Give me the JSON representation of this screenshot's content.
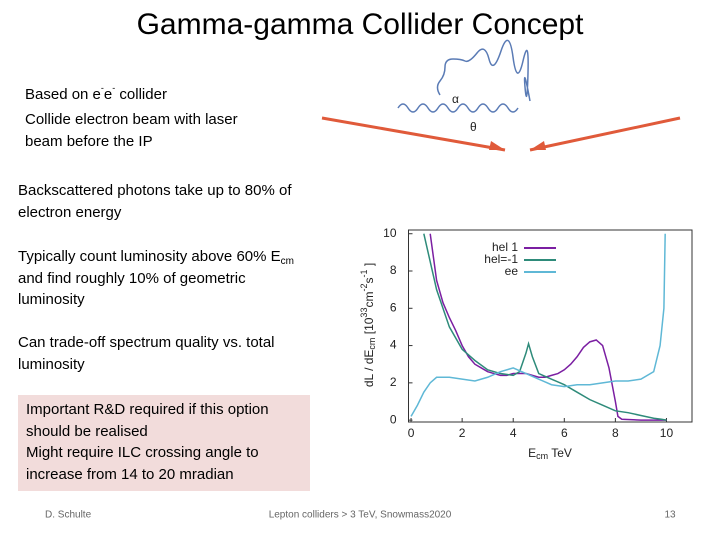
{
  "title": "Gamma-gamma Collider Concept",
  "blocks": [
    {
      "lines": [
        [
          "Based on e",
          "-",
          "e",
          "-",
          " collider"
        ],
        "Collide electron beam with laser",
        "beam before the IP"
      ]
    },
    {
      "lines": [
        "Backscattered photons take up to 80% of",
        "electron energy"
      ]
    },
    {
      "lines": [
        [
          "Typically count luminosity above 60% E",
          "cm"
        ],
        "and find roughly 10% of geometric",
        "luminosity"
      ]
    },
    {
      "lines": [
        "Can trade-off spectrum quality vs. total",
        "luminosity"
      ]
    }
  ],
  "box": {
    "lines": [
      "Important R&D required if this option",
      "should be realised",
      "Might require ILC crossing angle to",
      "increase from 14 to 20 mradian"
    ]
  },
  "diagram": {
    "labels": [
      "α",
      "θ"
    ]
  },
  "footer": {
    "author": "D. Schulte",
    "event": "Lepton colliders > 3 TeV, Snowmass2020",
    "page": "13"
  },
  "chart_data": {
    "type": "line",
    "x_label": [
      "E",
      "cm",
      " TeV"
    ],
    "y_label": [
      "dL / dE",
      "cm",
      " [10",
      "33",
      "cm",
      "-2",
      "s",
      "-1",
      " ]"
    ],
    "xlim": [
      -0.1,
      11
    ],
    "ylim": [
      -0.1,
      10.2
    ],
    "xticks": [
      0,
      2,
      4,
      6,
      8,
      10
    ],
    "yticks": [
      0,
      2,
      4,
      6,
      8,
      10
    ],
    "series": [
      {
        "name": "hel 1",
        "color": "#7b1fa2",
        "x": [
          0.75,
          1,
          1.25,
          1.5,
          1.75,
          2,
          2.25,
          2.5,
          2.75,
          3,
          3.25,
          3.5,
          3.75,
          4,
          4.25,
          4.5,
          4.75,
          5,
          5.25,
          5.5,
          5.75,
          6,
          6.25,
          6.5,
          6.75,
          7,
          7.25,
          7.5,
          7.75,
          8,
          8.1,
          8.25,
          9,
          10
        ],
        "values": [
          10,
          7.5,
          6.3,
          5.5,
          4.8,
          4.0,
          3.4,
          3.0,
          2.8,
          2.6,
          2.5,
          2.4,
          2.4,
          2.5,
          2.5,
          2.5,
          2.4,
          2.3,
          2.3,
          2.4,
          2.5,
          2.7,
          3.0,
          3.4,
          3.9,
          4.2,
          4.3,
          4.0,
          2.8,
          1.0,
          0.2,
          0.05,
          0,
          0
        ]
      },
      {
        "name": "hel=-1",
        "color": "#2e8b7a",
        "x": [
          0.5,
          1,
          1.5,
          2,
          2.5,
          3,
          3.5,
          4,
          4.25,
          4.5,
          4.6,
          4.75,
          5,
          5.5,
          6,
          6.5,
          7,
          7.5,
          8,
          8.5,
          9,
          9.5,
          9.8,
          10
        ],
        "values": [
          10,
          7,
          5,
          3.8,
          3.2,
          2.7,
          2.5,
          2.4,
          2.6,
          3.6,
          4.1,
          3.4,
          2.5,
          2.2,
          1.9,
          1.5,
          1.1,
          0.8,
          0.5,
          0.4,
          0.25,
          0.1,
          0.05,
          0
        ]
      },
      {
        "name": "ee",
        "color": "#5fb8d6",
        "x": [
          0,
          0.25,
          0.5,
          0.75,
          1,
          1.5,
          2,
          2.5,
          3,
          3.5,
          4,
          4.5,
          5,
          5.5,
          6,
          6.5,
          7,
          7.5,
          8,
          8.5,
          9,
          9.5,
          9.75,
          9.9,
          9.95
        ],
        "values": [
          0.2,
          0.8,
          1.5,
          2.0,
          2.3,
          2.3,
          2.2,
          2.1,
          2.3,
          2.6,
          2.8,
          2.5,
          2.2,
          1.9,
          1.8,
          1.9,
          1.9,
          2.0,
          2.1,
          2.1,
          2.2,
          2.6,
          4,
          6,
          10
        ]
      }
    ]
  }
}
